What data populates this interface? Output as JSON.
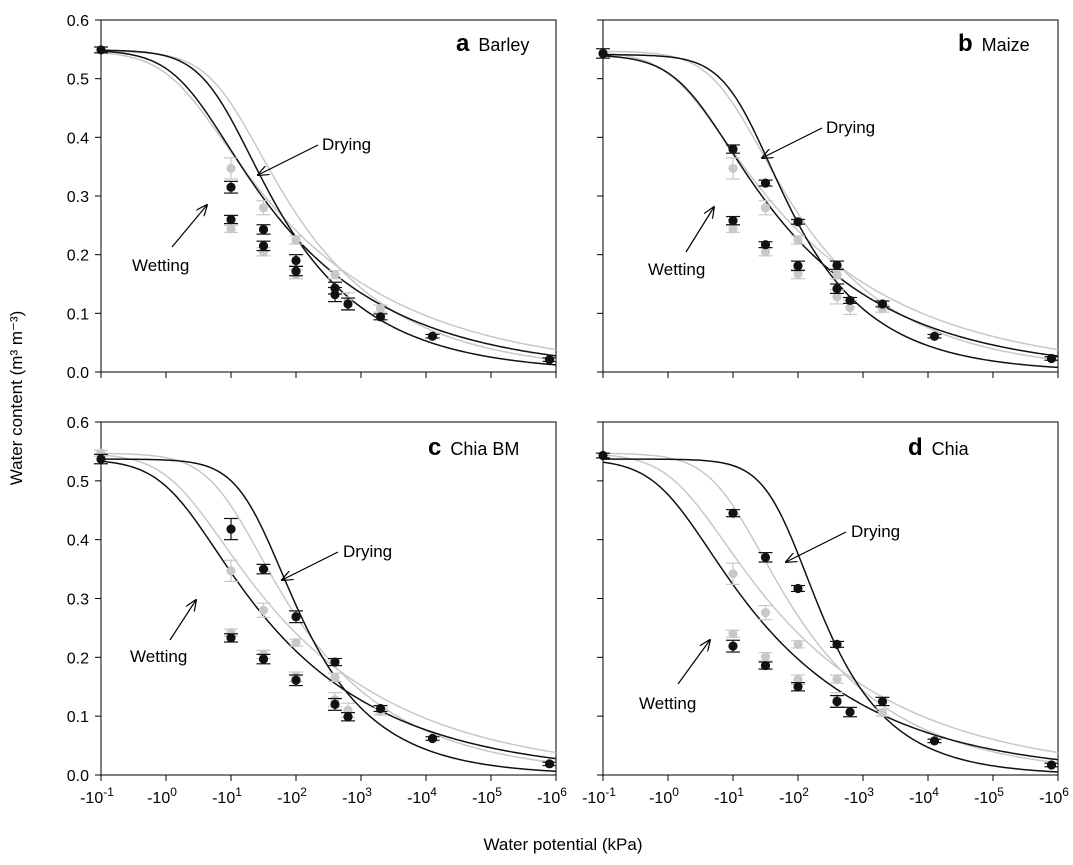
{
  "figure": {
    "xlabel": "Water potential (kPa)",
    "ylabel": "Water content (m³ m⁻³)",
    "x_ticks": [
      {
        "base": "-10",
        "exp": "-1"
      },
      {
        "base": "-10",
        "exp": "0"
      },
      {
        "base": "-10",
        "exp": "1"
      },
      {
        "base": "-10",
        "exp": "2"
      },
      {
        "base": "-10",
        "exp": "3"
      },
      {
        "base": "-10",
        "exp": "4"
      },
      {
        "base": "-10",
        "exp": "5"
      },
      {
        "base": "-10",
        "exp": "6"
      }
    ],
    "y_ticks": [
      "0.0",
      "0.1",
      "0.2",
      "0.3",
      "0.4",
      "0.5",
      "0.6"
    ],
    "colors": {
      "dark": "#111111",
      "light": "#c8c8c8"
    }
  },
  "chart_data": [
    {
      "type": "scatter",
      "panel_letter": "a",
      "panel_name": "Barley",
      "annotations": {
        "drying": "Drying",
        "wetting": "Wetting"
      },
      "x_scale": "log10 of -water potential (kPa)",
      "xlim": [
        -1,
        6
      ],
      "ylim": [
        0,
        0.6
      ],
      "grid": false,
      "series": [
        {
          "role": "dark-points",
          "color": "#111111",
          "points": [
            {
              "x": -1,
              "y": 0.549,
              "err": 0.005
            },
            {
              "x": 1,
              "y": 0.315,
              "err": 0.01
            },
            {
              "x": 1,
              "y": 0.26,
              "err": 0.007
            },
            {
              "x": 1.5,
              "y": 0.243,
              "err": 0.008
            },
            {
              "x": 1.5,
              "y": 0.215,
              "err": 0.008
            },
            {
              "x": 2,
              "y": 0.19,
              "err": 0.01
            },
            {
              "x": 2,
              "y": 0.172,
              "err": 0.008
            },
            {
              "x": 2.6,
              "y": 0.143,
              "err": 0.01
            },
            {
              "x": 2.6,
              "y": 0.132,
              "err": 0.012
            },
            {
              "x": 2.8,
              "y": 0.116,
              "err": 0.01
            },
            {
              "x": 3.3,
              "y": 0.094,
              "err": 0.005
            },
            {
              "x": 4.1,
              "y": 0.061,
              "err": 0.003
            },
            {
              "x": 5.9,
              "y": 0.021,
              "err": 0.003
            }
          ]
        },
        {
          "role": "light-points",
          "color": "#c8c8c8",
          "points": [
            {
              "x": 1,
              "y": 0.347,
              "err": 0.018
            },
            {
              "x": 1,
              "y": 0.244,
              "err": 0.006
            },
            {
              "x": 1.5,
              "y": 0.28,
              "err": 0.012
            },
            {
              "x": 1.5,
              "y": 0.205,
              "err": 0.007
            },
            {
              "x": 2,
              "y": 0.225,
              "err": 0.007
            },
            {
              "x": 2,
              "y": 0.167,
              "err": 0.008
            },
            {
              "x": 2.6,
              "y": 0.166,
              "err": 0.007
            },
            {
              "x": 2.6,
              "y": 0.143,
              "err": 0.01
            },
            {
              "x": 2.8,
              "y": 0.12,
              "err": 0.015
            },
            {
              "x": 3.3,
              "y": 0.108,
              "err": 0.006
            }
          ]
        },
        {
          "role": "dark-drying-curve",
          "color": "#111111",
          "curve": {
            "qs": 0.549,
            "qr": 0.0,
            "alpha": 0.15,
            "n": 1.32
          }
        },
        {
          "role": "dark-wetting-curve",
          "color": "#111111",
          "curve": {
            "qs": 0.549,
            "qr": 0.0,
            "alpha": 0.45,
            "n": 1.23
          }
        },
        {
          "role": "light-drying-curve",
          "color": "#c8c8c8",
          "curve": {
            "qs": 0.547,
            "qr": 0.0,
            "alpha": 0.12,
            "n": 1.28
          }
        },
        {
          "role": "light-wetting-curve",
          "color": "#c8c8c8",
          "curve": {
            "qs": 0.547,
            "qr": 0.0,
            "alpha": 0.6,
            "n": 1.2
          }
        }
      ]
    },
    {
      "type": "scatter",
      "panel_letter": "b",
      "panel_name": "Maize",
      "annotations": {
        "drying": "Drying",
        "wetting": "Wetting"
      },
      "x_scale": "log10 of -water potential (kPa)",
      "xlim": [
        -1,
        6
      ],
      "ylim": [
        0,
        0.6
      ],
      "grid": false,
      "series": [
        {
          "role": "dark-points",
          "color": "#111111",
          "points": [
            {
              "x": -1,
              "y": 0.543,
              "err": 0.008
            },
            {
              "x": 1,
              "y": 0.38,
              "err": 0.007
            },
            {
              "x": 1,
              "y": 0.258,
              "err": 0.007
            },
            {
              "x": 1.5,
              "y": 0.322,
              "err": 0.005
            },
            {
              "x": 1.5,
              "y": 0.217,
              "err": 0.005
            },
            {
              "x": 2,
              "y": 0.256,
              "err": 0.004
            },
            {
              "x": 2,
              "y": 0.181,
              "err": 0.008
            },
            {
              "x": 2.6,
              "y": 0.182,
              "err": 0.007
            },
            {
              "x": 2.6,
              "y": 0.142,
              "err": 0.008
            },
            {
              "x": 2.8,
              "y": 0.122,
              "err": 0.005
            },
            {
              "x": 3.3,
              "y": 0.116,
              "err": 0.005
            },
            {
              "x": 4.1,
              "y": 0.061,
              "err": 0.003
            },
            {
              "x": 5.9,
              "y": 0.023,
              "err": 0.003
            }
          ]
        },
        {
          "role": "light-points",
          "color": "#c8c8c8",
          "points": [
            {
              "x": 1,
              "y": 0.347,
              "err": 0.018
            },
            {
              "x": 1,
              "y": 0.244,
              "err": 0.006
            },
            {
              "x": 1.5,
              "y": 0.28,
              "err": 0.012
            },
            {
              "x": 1.5,
              "y": 0.205,
              "err": 0.007
            },
            {
              "x": 2,
              "y": 0.225,
              "err": 0.007
            },
            {
              "x": 2,
              "y": 0.167,
              "err": 0.008
            },
            {
              "x": 2.6,
              "y": 0.166,
              "err": 0.007
            },
            {
              "x": 2.6,
              "y": 0.128,
              "err": 0.012
            },
            {
              "x": 2.8,
              "y": 0.11,
              "err": 0.012
            },
            {
              "x": 3.3,
              "y": 0.108,
              "err": 0.006
            }
          ]
        },
        {
          "role": "dark-drying-curve",
          "color": "#111111",
          "curve": {
            "qs": 0.541,
            "qr": 0.0,
            "alpha": 0.07,
            "n": 1.38
          }
        },
        {
          "role": "dark-wetting-curve",
          "color": "#111111",
          "curve": {
            "qs": 0.541,
            "qr": 0.0,
            "alpha": 0.45,
            "n": 1.23
          }
        },
        {
          "role": "light-drying-curve",
          "color": "#c8c8c8",
          "curve": {
            "qs": 0.547,
            "qr": 0.0,
            "alpha": 0.12,
            "n": 1.28
          }
        },
        {
          "role": "light-wetting-curve",
          "color": "#c8c8c8",
          "curve": {
            "qs": 0.547,
            "qr": 0.0,
            "alpha": 0.6,
            "n": 1.2
          }
        }
      ]
    },
    {
      "type": "scatter",
      "panel_letter": "c",
      "panel_name": "Chia BM",
      "annotations": {
        "drying": "Drying",
        "wetting": "Wetting"
      },
      "x_scale": "log10 of -water potential (kPa)",
      "xlim": [
        -1,
        6
      ],
      "ylim": [
        0,
        0.6
      ],
      "grid": false,
      "series": [
        {
          "role": "dark-points",
          "color": "#111111",
          "points": [
            {
              "x": -1,
              "y": 0.537,
              "err": 0.008
            },
            {
              "x": 1,
              "y": 0.418,
              "err": 0.018
            },
            {
              "x": 1,
              "y": 0.233,
              "err": 0.007
            },
            {
              "x": 1.5,
              "y": 0.35,
              "err": 0.008
            },
            {
              "x": 1.5,
              "y": 0.197,
              "err": 0.008
            },
            {
              "x": 2,
              "y": 0.269,
              "err": 0.01
            },
            {
              "x": 2,
              "y": 0.161,
              "err": 0.009
            },
            {
              "x": 2.6,
              "y": 0.192,
              "err": 0.006
            },
            {
              "x": 2.6,
              "y": 0.12,
              "err": 0.01
            },
            {
              "x": 2.8,
              "y": 0.099,
              "err": 0.007
            },
            {
              "x": 3.3,
              "y": 0.113,
              "err": 0.005
            },
            {
              "x": 4.1,
              "y": 0.062,
              "err": 0.003
            },
            {
              "x": 5.9,
              "y": 0.019,
              "err": 0.003
            }
          ]
        },
        {
          "role": "light-points",
          "color": "#c8c8c8",
          "points": [
            {
              "x": -1,
              "y": 0.547,
              "err": 0.005
            },
            {
              "x": 1,
              "y": 0.347,
              "err": 0.018
            },
            {
              "x": 1,
              "y": 0.242,
              "err": 0.006
            },
            {
              "x": 1.5,
              "y": 0.28,
              "err": 0.012
            },
            {
              "x": 1.5,
              "y": 0.205,
              "err": 0.007
            },
            {
              "x": 2,
              "y": 0.225,
              "err": 0.006
            },
            {
              "x": 2,
              "y": 0.167,
              "err": 0.008
            },
            {
              "x": 2.6,
              "y": 0.166,
              "err": 0.007
            },
            {
              "x": 2.6,
              "y": 0.128,
              "err": 0.012
            },
            {
              "x": 2.8,
              "y": 0.11,
              "err": 0.012
            },
            {
              "x": 3.3,
              "y": 0.108,
              "err": 0.006
            }
          ]
        },
        {
          "role": "dark-drying-curve",
          "color": "#111111",
          "curve": {
            "qs": 0.537,
            "qr": 0.0,
            "alpha": 0.04,
            "n": 1.42
          }
        },
        {
          "role": "dark-wetting-curve",
          "color": "#111111",
          "curve": {
            "qs": 0.537,
            "qr": 0.0,
            "alpha": 0.7,
            "n": 1.22
          }
        },
        {
          "role": "light-drying-curve",
          "color": "#c8c8c8",
          "curve": {
            "qs": 0.547,
            "qr": 0.0,
            "alpha": 0.12,
            "n": 1.28
          }
        },
        {
          "role": "light-wetting-curve",
          "color": "#c8c8c8",
          "curve": {
            "qs": 0.547,
            "qr": 0.0,
            "alpha": 0.6,
            "n": 1.2
          }
        }
      ]
    },
    {
      "type": "scatter",
      "panel_letter": "d",
      "panel_name": "Chia",
      "annotations": {
        "drying": "Drying",
        "wetting": "Wetting"
      },
      "x_scale": "log10 of -water potential (kPa)",
      "xlim": [
        -1,
        6
      ],
      "ylim": [
        0,
        0.6
      ],
      "grid": false,
      "series": [
        {
          "role": "dark-points",
          "color": "#111111",
          "points": [
            {
              "x": -1,
              "y": 0.543,
              "err": 0.004
            },
            {
              "x": 1,
              "y": 0.445,
              "err": 0.006
            },
            {
              "x": 1,
              "y": 0.219,
              "err": 0.01
            },
            {
              "x": 1.5,
              "y": 0.37,
              "err": 0.008
            },
            {
              "x": 1.5,
              "y": 0.186,
              "err": 0.006
            },
            {
              "x": 2,
              "y": 0.317,
              "err": 0.005
            },
            {
              "x": 2,
              "y": 0.15,
              "err": 0.007
            },
            {
              "x": 2.6,
              "y": 0.222,
              "err": 0.005
            },
            {
              "x": 2.6,
              "y": 0.125,
              "err": 0.01
            },
            {
              "x": 2.8,
              "y": 0.107,
              "err": 0.008
            },
            {
              "x": 3.3,
              "y": 0.125,
              "err": 0.007
            },
            {
              "x": 4.1,
              "y": 0.058,
              "err": 0.003
            },
            {
              "x": 5.9,
              "y": 0.017,
              "err": 0.003
            }
          ]
        },
        {
          "role": "light-points",
          "color": "#c8c8c8",
          "points": [
            {
              "x": 1,
              "y": 0.342,
              "err": 0.018
            },
            {
              "x": 1,
              "y": 0.24,
              "err": 0.006
            },
            {
              "x": 1.5,
              "y": 0.276,
              "err": 0.012
            },
            {
              "x": 1.5,
              "y": 0.201,
              "err": 0.007
            },
            {
              "x": 2,
              "y": 0.222,
              "err": 0.006
            },
            {
              "x": 2,
              "y": 0.162,
              "err": 0.008
            },
            {
              "x": 2.6,
              "y": 0.163,
              "err": 0.007
            },
            {
              "x": 2.6,
              "y": 0.128,
              "err": 0.012
            },
            {
              "x": 3.3,
              "y": 0.106,
              "err": 0.006
            }
          ]
        },
        {
          "role": "dark-drying-curve",
          "color": "#111111",
          "curve": {
            "qs": 0.537,
            "qr": 0.0,
            "alpha": 0.016,
            "n": 1.48
          }
        },
        {
          "role": "dark-wetting-curve",
          "color": "#111111",
          "curve": {
            "qs": 0.537,
            "qr": 0.0,
            "alpha": 0.95,
            "n": 1.22
          }
        },
        {
          "role": "light-drying-curve",
          "color": "#c8c8c8",
          "curve": {
            "qs": 0.547,
            "qr": 0.0,
            "alpha": 0.12,
            "n": 1.28
          }
        },
        {
          "role": "light-wetting-curve",
          "color": "#c8c8c8",
          "curve": {
            "qs": 0.547,
            "qr": 0.0,
            "alpha": 0.6,
            "n": 1.2
          }
        }
      ]
    }
  ]
}
